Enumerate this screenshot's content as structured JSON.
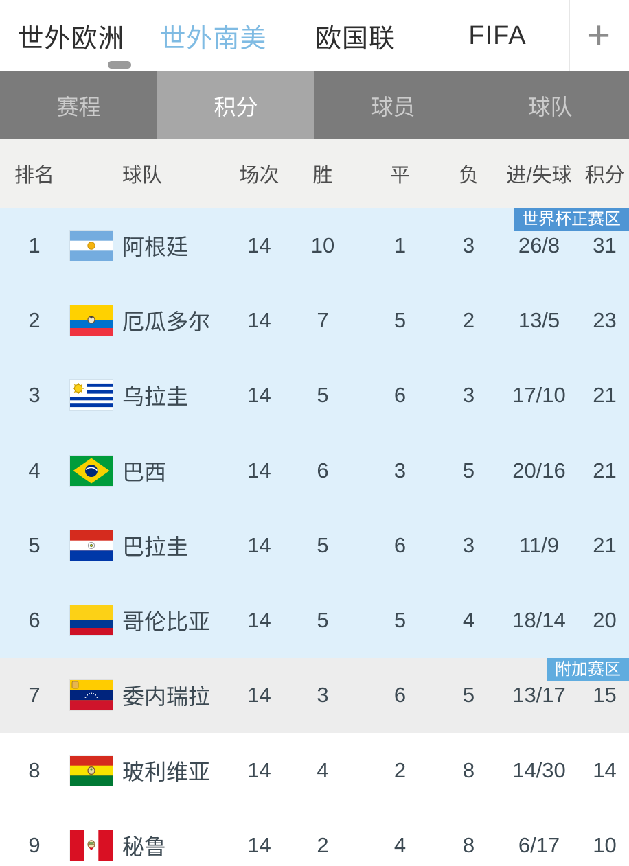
{
  "top_tabs": {
    "items": [
      {
        "label": "世外欧洲",
        "active": false
      },
      {
        "label": "世外南美",
        "active": true
      },
      {
        "label": "欧国联",
        "active": false
      },
      {
        "label": "FIFA",
        "active": false
      }
    ],
    "add_button_label": "+",
    "active_color": "#7fbbe3"
  },
  "sub_tabs": {
    "items": [
      {
        "label": "赛程",
        "active": false
      },
      {
        "label": "积分",
        "active": true
      },
      {
        "label": "球员",
        "active": false
      },
      {
        "label": "球队",
        "active": false
      }
    ]
  },
  "standings": {
    "columns": {
      "rank": "排名",
      "team": "球队",
      "played": "场次",
      "win": "胜",
      "draw": "平",
      "loss": "负",
      "goals": "进/失球",
      "points": "积分"
    },
    "badges": {
      "qualification": {
        "label": "世界杯正赛区",
        "color": "#4e95d4"
      },
      "playoff": {
        "label": "附加赛区",
        "color": "#60acdf"
      }
    },
    "zone_colors": {
      "qualification": "#dff0fb",
      "playoff": "#ededed",
      "none": "#ffffff"
    },
    "rows": [
      {
        "rank": "1",
        "team": "阿根廷",
        "flag": "argentina",
        "played": "14",
        "win": "10",
        "draw": "1",
        "loss": "3",
        "goals": "26/8",
        "points": "31",
        "zone": "qualification",
        "badge": "qualification"
      },
      {
        "rank": "2",
        "team": "厄瓜多尔",
        "flag": "ecuador",
        "played": "14",
        "win": "7",
        "draw": "5",
        "loss": "2",
        "goals": "13/5",
        "points": "23",
        "zone": "qualification",
        "badge": null
      },
      {
        "rank": "3",
        "team": "乌拉圭",
        "flag": "uruguay",
        "played": "14",
        "win": "5",
        "draw": "6",
        "loss": "3",
        "goals": "17/10",
        "points": "21",
        "zone": "qualification",
        "badge": null
      },
      {
        "rank": "4",
        "team": "巴西",
        "flag": "brazil",
        "played": "14",
        "win": "6",
        "draw": "3",
        "loss": "5",
        "goals": "20/16",
        "points": "21",
        "zone": "qualification",
        "badge": null
      },
      {
        "rank": "5",
        "team": "巴拉圭",
        "flag": "paraguay",
        "played": "14",
        "win": "5",
        "draw": "6",
        "loss": "3",
        "goals": "11/9",
        "points": "21",
        "zone": "qualification",
        "badge": null
      },
      {
        "rank": "6",
        "team": "哥伦比亚",
        "flag": "colombia",
        "played": "14",
        "win": "5",
        "draw": "5",
        "loss": "4",
        "goals": "18/14",
        "points": "20",
        "zone": "qualification",
        "badge": null
      },
      {
        "rank": "7",
        "team": "委内瑞拉",
        "flag": "venezuela",
        "played": "14",
        "win": "3",
        "draw": "6",
        "loss": "5",
        "goals": "13/17",
        "points": "15",
        "zone": "playoff",
        "badge": "playoff"
      },
      {
        "rank": "8",
        "team": "玻利维亚",
        "flag": "bolivia",
        "played": "14",
        "win": "4",
        "draw": "2",
        "loss": "8",
        "goals": "14/30",
        "points": "14",
        "zone": "none",
        "badge": null
      },
      {
        "rank": "9",
        "team": "秘鲁",
        "flag": "peru",
        "played": "14",
        "win": "2",
        "draw": "4",
        "loss": "8",
        "goals": "6/17",
        "points": "10",
        "zone": "none",
        "badge": null
      }
    ]
  }
}
